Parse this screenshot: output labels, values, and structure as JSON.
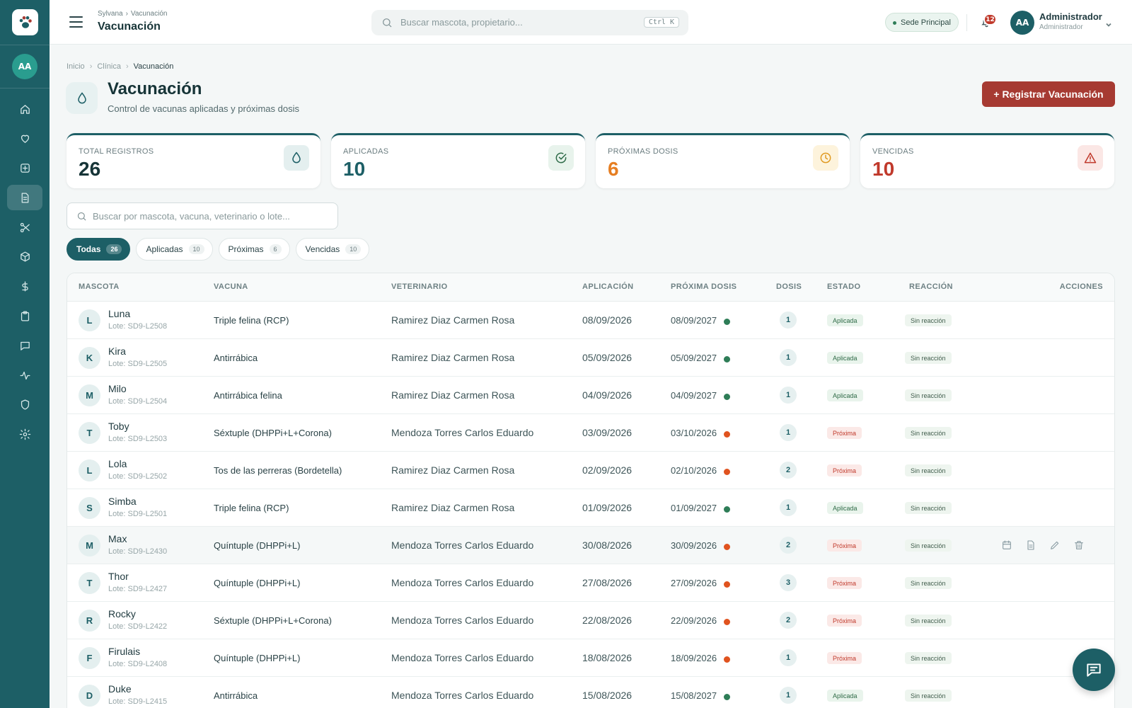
{
  "topbar": {
    "breadcrumb": [
      "Sylvana",
      "Vacunación"
    ],
    "title": "Vacunación",
    "search_placeholder": "Buscar mascota, propietario...",
    "shortcut": "Ctrl K",
    "branch": "Sede Principal",
    "notifications": "12",
    "user_initials": "AA",
    "user_name": "Administrador",
    "user_role": "Administrador"
  },
  "sidebar": {
    "avatar": "AA",
    "items": [
      {
        "icon": "home-icon",
        "active": false
      },
      {
        "icon": "heart-icon",
        "active": false
      },
      {
        "icon": "medical-plus-icon",
        "active": false
      },
      {
        "icon": "document-icon",
        "active": true
      },
      {
        "icon": "scissors-icon",
        "active": false
      },
      {
        "icon": "box-icon",
        "active": false
      },
      {
        "icon": "dollar-icon",
        "active": false
      },
      {
        "icon": "clipboard-icon",
        "active": false
      },
      {
        "icon": "chat-icon",
        "active": false
      },
      {
        "icon": "activity-icon",
        "active": false
      },
      {
        "icon": "shield-icon",
        "active": false
      },
      {
        "icon": "gear-icon",
        "active": false
      }
    ]
  },
  "breadcrumb": {
    "home": "Inicio",
    "section": "Clínica",
    "current": "Vacunación"
  },
  "page": {
    "title": "Vacunación",
    "subtitle": "Control de vacunas aplicadas y próximas dosis",
    "primary_button": "+ Registrar Vacunación"
  },
  "stats": [
    {
      "label": "TOTAL REGISTROS",
      "value": "26",
      "color": "#163437",
      "icon": "drop-icon"
    },
    {
      "label": "APLICADAS",
      "value": "10",
      "color": "#1d5f66",
      "icon": "check-circle-icon"
    },
    {
      "label": "PRÓXIMAS DOSIS",
      "value": "6",
      "color": "#e67e22",
      "icon": "clock-icon"
    },
    {
      "label": "VENCIDAS",
      "value": "10",
      "color": "#c0392b",
      "icon": "warning-icon"
    }
  ],
  "table_search_placeholder": "Buscar por mascota, vacuna, veterinario o lote...",
  "filters": [
    {
      "label": "Todas",
      "count": "26",
      "active": true
    },
    {
      "label": "Aplicadas",
      "count": "10",
      "active": false
    },
    {
      "label": "Próximas",
      "count": "6",
      "active": false
    },
    {
      "label": "Vencidas",
      "count": "10",
      "active": false
    }
  ],
  "table": {
    "columns": [
      "MASCOTA",
      "VACUNA",
      "VETERINARIO",
      "APLICACIÓN",
      "PRÓXIMA DOSIS",
      "DOSIS",
      "ESTADO",
      "REACCIÓN",
      "ACCIONES"
    ],
    "rows": [
      {
        "initial": "L",
        "name": "Luna",
        "lote": "Lote: SD9-L2508",
        "vacuna": "Triple felina (RCP)",
        "vet": "Ramirez Diaz Carmen Rosa",
        "aplicacion": "08/09/2026",
        "proxima": "08/09/2027",
        "dot": "#2e7d57",
        "dosis": "1",
        "estado": "Aplicada",
        "reaccion": "Sin reacción"
      },
      {
        "initial": "K",
        "name": "Kira",
        "lote": "Lote: SD9-L2505",
        "vacuna": "Antirrábica",
        "vet": "Ramirez Diaz Carmen Rosa",
        "aplicacion": "05/09/2026",
        "proxima": "05/09/2027",
        "dot": "#2e7d57",
        "dosis": "1",
        "estado": "Aplicada",
        "reaccion": "Sin reacción"
      },
      {
        "initial": "M",
        "name": "Milo",
        "lote": "Lote: SD9-L2504",
        "vacuna": "Antirrábica felina",
        "vet": "Ramirez Diaz Carmen Rosa",
        "aplicacion": "04/09/2026",
        "proxima": "04/09/2027",
        "dot": "#2e7d57",
        "dosis": "1",
        "estado": "Aplicada",
        "reaccion": "Sin reacción"
      },
      {
        "initial": "T",
        "name": "Toby",
        "lote": "Lote: SD9-L2503",
        "vacuna": "Séxtuple (DHPPi+L+Corona)",
        "vet": "Mendoza Torres Carlos Eduardo",
        "aplicacion": "03/09/2026",
        "proxima": "03/10/2026",
        "dot": "#e0531f",
        "dosis": "1",
        "estado": "Próxima",
        "reaccion": "Sin reacción"
      },
      {
        "initial": "L",
        "name": "Lola",
        "lote": "Lote: SD9-L2502",
        "vacuna": "Tos de las perreras (Bordetella)",
        "vet": "Ramirez Diaz Carmen Rosa",
        "aplicacion": "02/09/2026",
        "proxima": "02/10/2026",
        "dot": "#e0531f",
        "dosis": "2",
        "estado": "Próxima",
        "reaccion": "Sin reacción"
      },
      {
        "initial": "S",
        "name": "Simba",
        "lote": "Lote: SD9-L2501",
        "vacuna": "Triple felina (RCP)",
        "vet": "Ramirez Diaz Carmen Rosa",
        "aplicacion": "01/09/2026",
        "proxima": "01/09/2027",
        "dot": "#2e7d57",
        "dosis": "1",
        "estado": "Aplicada",
        "reaccion": "Sin reacción"
      },
      {
        "initial": "M",
        "name": "Max",
        "lote": "Lote: SD9-L2430",
        "vacuna": "Quíntuple (DHPPi+L)",
        "vet": "Mendoza Torres Carlos Eduardo",
        "aplicacion": "30/08/2026",
        "proxima": "30/09/2026",
        "dot": "#e0531f",
        "dosis": "2",
        "estado": "Próxima",
        "reaccion": "Sin reacción",
        "hover": true
      },
      {
        "initial": "T",
        "name": "Thor",
        "lote": "Lote: SD9-L2427",
        "vacuna": "Quíntuple (DHPPi+L)",
        "vet": "Mendoza Torres Carlos Eduardo",
        "aplicacion": "27/08/2026",
        "proxima": "27/09/2026",
        "dot": "#e0531f",
        "dosis": "3",
        "estado": "Próxima",
        "reaccion": "Sin reacción"
      },
      {
        "initial": "R",
        "name": "Rocky",
        "lote": "Lote: SD9-L2422",
        "vacuna": "Séxtuple (DHPPi+L+Corona)",
        "vet": "Mendoza Torres Carlos Eduardo",
        "aplicacion": "22/08/2026",
        "proxima": "22/09/2026",
        "dot": "#e0531f",
        "dosis": "2",
        "estado": "Próxima",
        "reaccion": "Sin reacción"
      },
      {
        "initial": "F",
        "name": "Firulais",
        "lote": "Lote: SD9-L2408",
        "vacuna": "Quíntuple (DHPPi+L)",
        "vet": "Mendoza Torres Carlos Eduardo",
        "aplicacion": "18/08/2026",
        "proxima": "18/09/2026",
        "dot": "#e0531f",
        "dosis": "1",
        "estado": "Próxima",
        "reaccion": "Sin reacción"
      },
      {
        "initial": "D",
        "name": "Duke",
        "lote": "Lote: SD9-L2415",
        "vacuna": "Antirrábica",
        "vet": "Mendoza Torres Carlos Eduardo",
        "aplicacion": "15/08/2026",
        "proxima": "15/08/2027",
        "dot": "#2e7d57",
        "dosis": "1",
        "estado": "Aplicada",
        "reaccion": "Sin reacción"
      }
    ],
    "row_actions": [
      "calendar-icon",
      "file-icon",
      "edit-icon",
      "trash-icon"
    ]
  }
}
